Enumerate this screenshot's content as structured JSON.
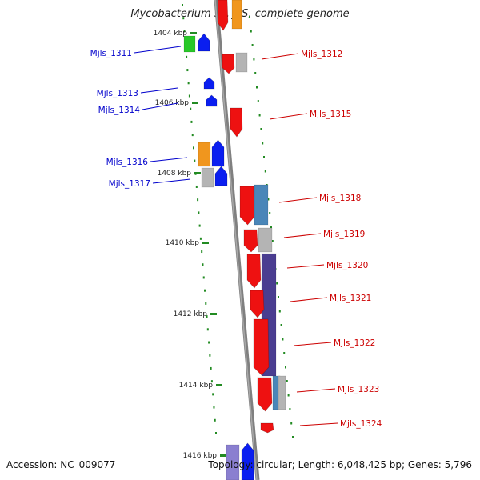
{
  "header": {
    "title": "Mycobacterium sp. JLS, complete genome"
  },
  "footer": {
    "accession": "Accession: NC_009077",
    "summary": "Topology: circular; Length: 6,048,425 bp; Genes: 5,796"
  },
  "colors": {
    "backbone": "#808080",
    "dots": "#228b22",
    "left_labels": "#0000cc",
    "right_labels": "#cc0000",
    "red": "#ee1111",
    "blue": "#0a1ef0",
    "orange": "#f0961e",
    "green": "#28c828",
    "grey": "#b4b4b4",
    "steel": "#4a86b8",
    "indigo": "#4a3d90"
  },
  "ticks": [
    "1404 kbp",
    "1406 kbp",
    "1408 kbp",
    "1410 kbp",
    "1412 kbp",
    "1414 kbp",
    "1416 kbp"
  ],
  "left_genes": [
    "Mjls_1311",
    "Mjls_1313",
    "Mjls_1314",
    "Mjls_1316",
    "Mjls_1317"
  ],
  "right_genes": [
    "Mjls_1312",
    "Mjls_1315",
    "Mjls_1318",
    "Mjls_1319",
    "Mjls_1320",
    "Mjls_1321",
    "Mjls_1322",
    "Mjls_1323",
    "Mjls_1324"
  ]
}
